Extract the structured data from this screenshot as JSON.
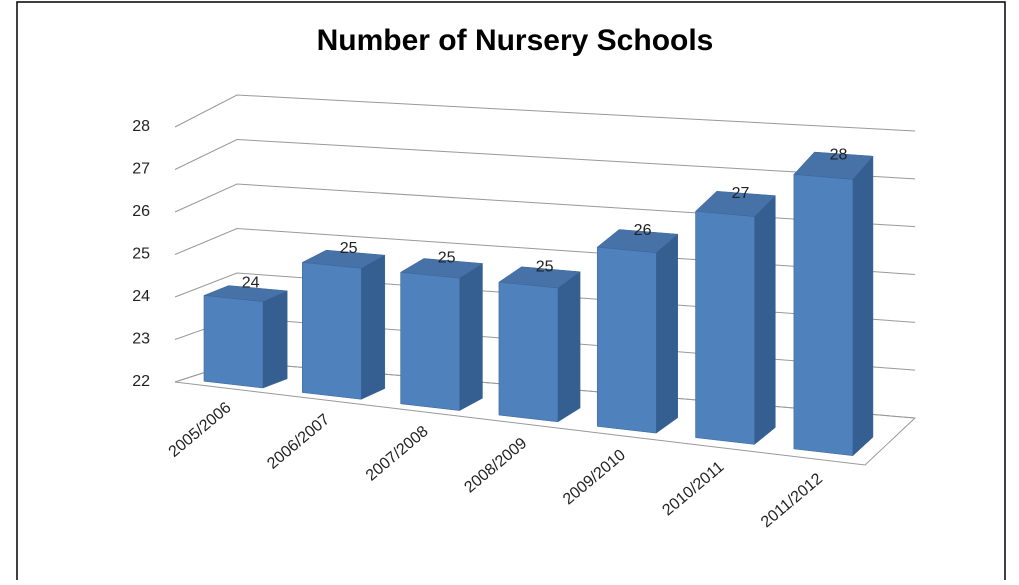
{
  "chart_data": {
    "type": "bar3d",
    "title": "Number of Nursery Schools",
    "categories": [
      "2005/2006",
      "2006/2007",
      "2007/2008",
      "2008/2009",
      "2009/2010",
      "2010/2011",
      "2011/2012"
    ],
    "values": [
      24,
      25,
      25,
      25,
      26,
      27,
      28
    ],
    "color": "#4f81bd",
    "ylim": [
      22,
      28
    ],
    "yticks": [
      22,
      23,
      24,
      25,
      26,
      27,
      28
    ],
    "grid": true
  }
}
